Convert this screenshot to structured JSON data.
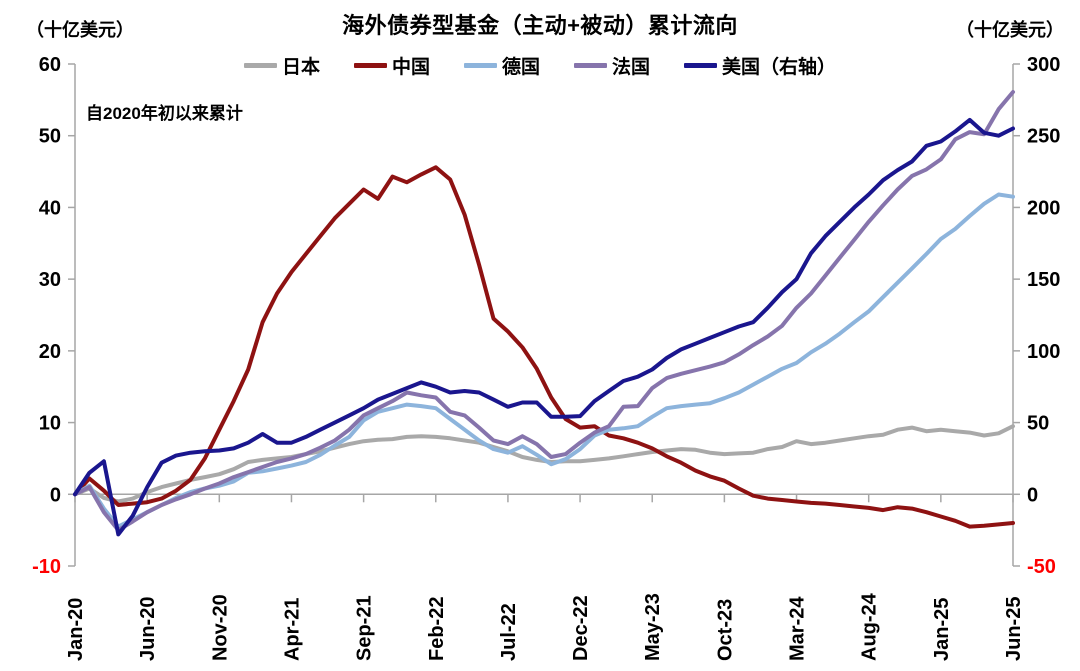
{
  "header": {
    "title": "海外债券型基金（主动+被动）累计流向",
    "left_unit": "（十亿美元）",
    "right_unit": "（十亿美元）",
    "annotation": "自2020年初以来累计"
  },
  "chart_data": {
    "type": "line",
    "title": "海外债券型基金（主动+被动）累计流向",
    "xlabel": "",
    "ylabel_left": "（十亿美元）",
    "ylabel_right": "（十亿美元）",
    "grid": "zero-line-only",
    "legend_position": "top-center",
    "x_months": "monthly index 0=Jan-20 .. 65=Jun-25",
    "x_tick_months": [
      0,
      5,
      10,
      15,
      20,
      25,
      30,
      35,
      40,
      45,
      50,
      55,
      60,
      65
    ],
    "x_tick_labels": [
      "Jan-20",
      "Jun-20",
      "Nov-20",
      "Apr-21",
      "Sep-21",
      "Feb-22",
      "Jul-22",
      "Dec-22",
      "May-23",
      "Oct-23",
      "Mar-24",
      "Aug-24",
      "Jan-25",
      "Jun-25"
    ],
    "left_axis": {
      "min": -10,
      "max": 60,
      "ticks": [
        60,
        50,
        40,
        30,
        20,
        10,
        0,
        -10
      ]
    },
    "right_axis": {
      "min": -50,
      "max": 300,
      "ticks": [
        300,
        250,
        200,
        150,
        100,
        50,
        0,
        -50
      ]
    },
    "axis_color": "#a6a6a6",
    "tick_label_color": "#000000",
    "negative_tick_color": "#fe0000",
    "series": [
      {
        "id": "japan",
        "name": "日本",
        "axis": "left",
        "color": "#a9a9a9",
        "values": [
          0,
          0.8,
          -0.5,
          -1.0,
          -0.6,
          0.3,
          1.0,
          1.5,
          2.0,
          2.4,
          2.8,
          3.5,
          4.5,
          4.8,
          5.0,
          5.2,
          5.6,
          6.0,
          6.5,
          7.0,
          7.4,
          7.6,
          7.7,
          8.0,
          8.1,
          8.0,
          7.8,
          7.5,
          7.2,
          6.6,
          6.0,
          5.2,
          4.8,
          4.5,
          4.6,
          4.6,
          4.8,
          5.0,
          5.3,
          5.6,
          5.9,
          6.1,
          6.3,
          6.2,
          5.8,
          5.6,
          5.7,
          5.8,
          6.3,
          6.6,
          7.4,
          7.0,
          7.2,
          7.5,
          7.8,
          8.1,
          8.3,
          9.0,
          9.3,
          8.8,
          9.0,
          8.8,
          8.6,
          8.2,
          8.5,
          9.5
        ]
      },
      {
        "id": "china",
        "name": "中国",
        "axis": "left",
        "color": "#8e1212",
        "values": [
          0,
          2.2,
          0.5,
          -1.5,
          -1.3,
          -1.1,
          -0.6,
          0.5,
          2.0,
          5.0,
          9.0,
          13.0,
          17.4,
          24.0,
          28.0,
          31.0,
          33.5,
          36.0,
          38.5,
          40.5,
          42.5,
          41.2,
          44.3,
          43.5,
          44.6,
          45.6,
          43.9,
          39.0,
          32.0,
          24.5,
          22.7,
          20.5,
          17.5,
          13.5,
          10.5,
          9.3,
          9.5,
          8.2,
          7.8,
          7.2,
          6.4,
          5.3,
          4.4,
          3.3,
          2.5,
          1.9,
          0.8,
          -0.2,
          -0.6,
          -0.8,
          -1.0,
          -1.2,
          -1.3,
          -1.5,
          -1.7,
          -1.9,
          -2.2,
          -1.8,
          -2.0,
          -2.5,
          -3.1,
          -3.7,
          -4.5,
          -4.4,
          -4.2,
          -4.0
        ]
      },
      {
        "id": "germany",
        "name": "德国",
        "axis": "left",
        "color": "#8db4dc",
        "values": [
          0,
          1.2,
          -2.0,
          -4.5,
          -3.5,
          -2.5,
          -1.5,
          -0.5,
          0.3,
          0.8,
          1.2,
          1.8,
          3.0,
          3.2,
          3.6,
          4.0,
          4.5,
          5.5,
          6.8,
          8.0,
          10.3,
          11.5,
          12.0,
          12.5,
          12.3,
          12.0,
          10.5,
          9.0,
          7.5,
          6.3,
          5.8,
          6.7,
          5.5,
          4.2,
          4.9,
          6.3,
          8.2,
          9.0,
          9.2,
          9.5,
          10.8,
          12.0,
          12.3,
          12.5,
          12.7,
          13.4,
          14.2,
          15.3,
          16.4,
          17.5,
          18.3,
          19.8,
          21.0,
          22.4,
          24.0,
          25.5,
          27.5,
          29.5,
          31.5,
          33.5,
          35.6,
          37.0,
          38.8,
          40.5,
          41.8,
          41.5
        ]
      },
      {
        "id": "france",
        "name": "法国",
        "axis": "left",
        "color": "#8674ac",
        "values": [
          0,
          1.0,
          -2.5,
          -5.0,
          -3.8,
          -2.5,
          -1.5,
          -0.7,
          0.0,
          0.8,
          1.5,
          2.4,
          3.1,
          3.8,
          4.5,
          5.0,
          5.6,
          6.5,
          7.5,
          9.0,
          11.0,
          12.0,
          13.0,
          14.2,
          13.8,
          13.5,
          11.5,
          11.0,
          9.3,
          7.5,
          7.0,
          8.1,
          7.0,
          5.2,
          5.6,
          7.2,
          8.6,
          9.5,
          12.2,
          12.3,
          14.8,
          16.2,
          16.8,
          17.3,
          17.8,
          18.4,
          19.5,
          20.8,
          22.0,
          23.5,
          26.0,
          28.0,
          30.5,
          33.0,
          35.5,
          38.0,
          40.3,
          42.5,
          44.4,
          45.3,
          46.7,
          49.5,
          50.5,
          50.2,
          53.7,
          56.1
        ]
      },
      {
        "id": "us",
        "name": "美国（右轴）",
        "axis": "right",
        "color": "#1a168e",
        "values": [
          0,
          15,
          23,
          -28,
          -15,
          5,
          22,
          27,
          29,
          30,
          30.5,
          32,
          36,
          42,
          36,
          36,
          40,
          45,
          50,
          55,
          60,
          66,
          70,
          74,
          78,
          75,
          71,
          72,
          71,
          66,
          61,
          64,
          64,
          54,
          54,
          54.5,
          65,
          72,
          79,
          82,
          87,
          95,
          101,
          105,
          109,
          113,
          117,
          120,
          130,
          141,
          150,
          168,
          180,
          190,
          200,
          209,
          219,
          226,
          232,
          243,
          246,
          253,
          261,
          252,
          250,
          255
        ]
      }
    ]
  }
}
